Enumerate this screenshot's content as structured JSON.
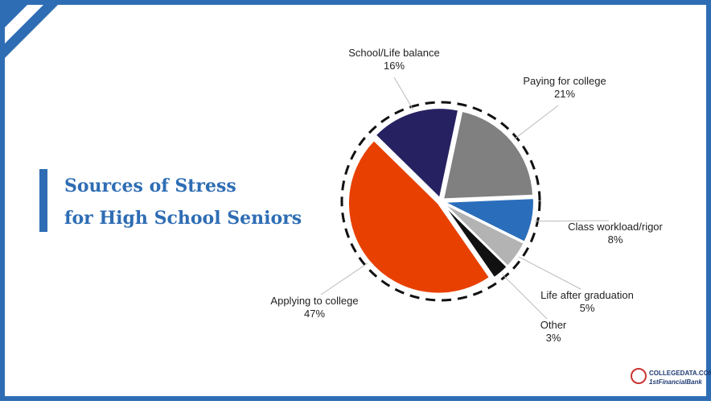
{
  "chart_data": {
    "type": "pie",
    "title": [
      "Sources of Stress",
      "for High School Seniors"
    ],
    "categories": [
      "Paying for college",
      "Class workload/rigor",
      "Life after graduation",
      "Other",
      "Applying to college",
      "School/Life balance"
    ],
    "values": [
      21,
      8,
      5,
      3,
      47,
      16
    ],
    "value_labels": [
      "21%",
      "8%",
      "5%",
      "3%",
      "47%",
      "16%"
    ],
    "colors": [
      "#808080",
      "#2a6ebb",
      "#b3b3b3",
      "#111111",
      "#e84000",
      "#262262"
    ]
  },
  "logo": [
    "COLLEGEDATA.COM",
    "1stFinancialBank"
  ]
}
